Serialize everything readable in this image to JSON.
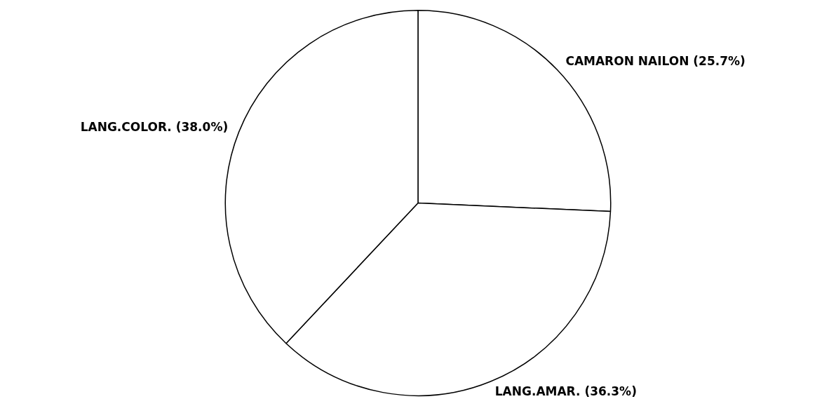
{
  "chart_data": {
    "type": "pie",
    "categories": [
      "CAMARON NAILON",
      "LANG.AMAR.",
      "LANG.COLOR."
    ],
    "values": [
      25.7,
      36.3,
      38.0
    ],
    "value_labels": [
      "(25.7%)",
      "(36.3%)",
      "(38.0%)"
    ],
    "colors": [
      "#ffffff",
      "#ffffff",
      "#ffffff"
    ],
    "legend": false
  }
}
